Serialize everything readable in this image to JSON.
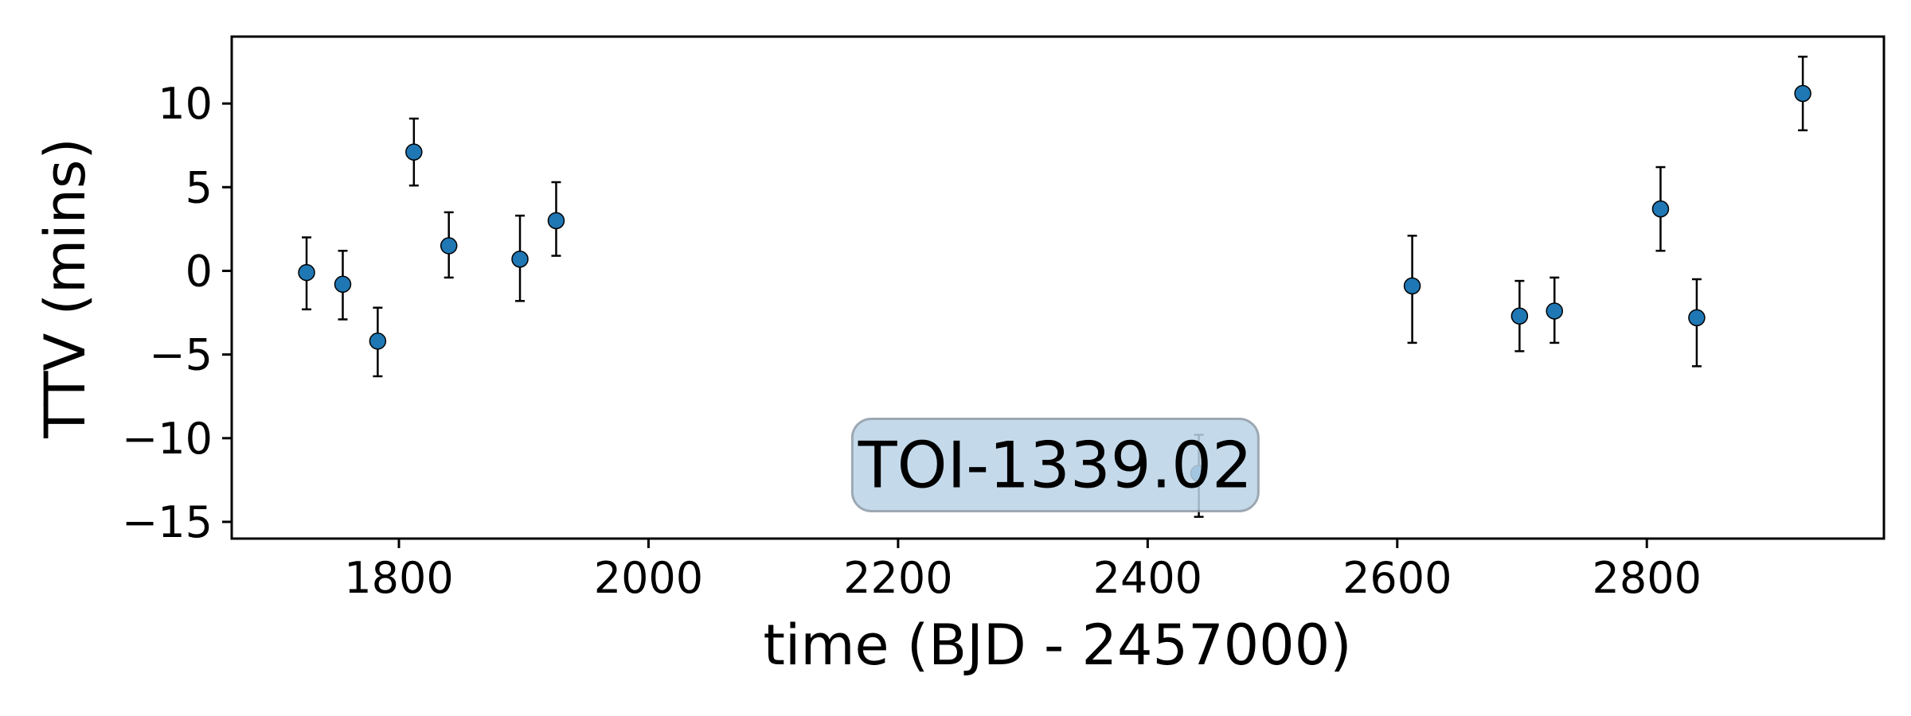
{
  "chart_data": {
    "type": "scatter",
    "title": "",
    "xlabel": "time (BJD - 2457000)",
    "ylabel": "TTV (mins)",
    "xlim": [
      1666,
      2990
    ],
    "ylim": [
      -16,
      14
    ],
    "xticks": [
      1800,
      2000,
      2200,
      2400,
      2600,
      2800
    ],
    "yticks": [
      -15,
      -10,
      -5,
      0,
      5,
      10
    ],
    "xtick_labels": [
      "1800",
      "2000",
      "2200",
      "2400",
      "2600",
      "2800"
    ],
    "ytick_labels": [
      "−15",
      "−10",
      "−5",
      "0",
      "5",
      "10"
    ],
    "grid": false,
    "legend": "none",
    "marker_color": "#1f77b4",
    "errorbar_color": "#000000",
    "annotation": {
      "text": "TOI-1339.02",
      "x": 2326,
      "y": -11.6,
      "box_color": "#bad4e8",
      "border_color": "#8c9aa6"
    },
    "points": [
      {
        "x": 1726,
        "y": -0.1,
        "err_low": 2.2,
        "err_high": 2.1
      },
      {
        "x": 1755,
        "y": -0.8,
        "err_low": 2.1,
        "err_high": 2.0
      },
      {
        "x": 1783,
        "y": -4.2,
        "err_low": 2.1,
        "err_high": 2.0
      },
      {
        "x": 1812,
        "y": 7.1,
        "err_low": 2.0,
        "err_high": 2.0
      },
      {
        "x": 1840,
        "y": 1.5,
        "err_low": 1.9,
        "err_high": 2.0
      },
      {
        "x": 1897,
        "y": 0.7,
        "err_low": 2.5,
        "err_high": 2.6
      },
      {
        "x": 1926,
        "y": 3.0,
        "err_low": 2.1,
        "err_high": 2.3
      },
      {
        "x": 2441,
        "y": -12.1,
        "err_low": 2.6,
        "err_high": 2.3
      },
      {
        "x": 2612,
        "y": -0.9,
        "err_low": 3.4,
        "err_high": 3.0
      },
      {
        "x": 2698,
        "y": -2.7,
        "err_low": 2.1,
        "err_high": 2.1
      },
      {
        "x": 2726,
        "y": -2.4,
        "err_low": 1.9,
        "err_high": 2.0
      },
      {
        "x": 2811,
        "y": 3.7,
        "err_low": 2.5,
        "err_high": 2.5
      },
      {
        "x": 2840,
        "y": -2.8,
        "err_low": 2.9,
        "err_high": 2.3
      },
      {
        "x": 2925,
        "y": 10.6,
        "err_low": 2.2,
        "err_high": 2.2
      }
    ]
  }
}
